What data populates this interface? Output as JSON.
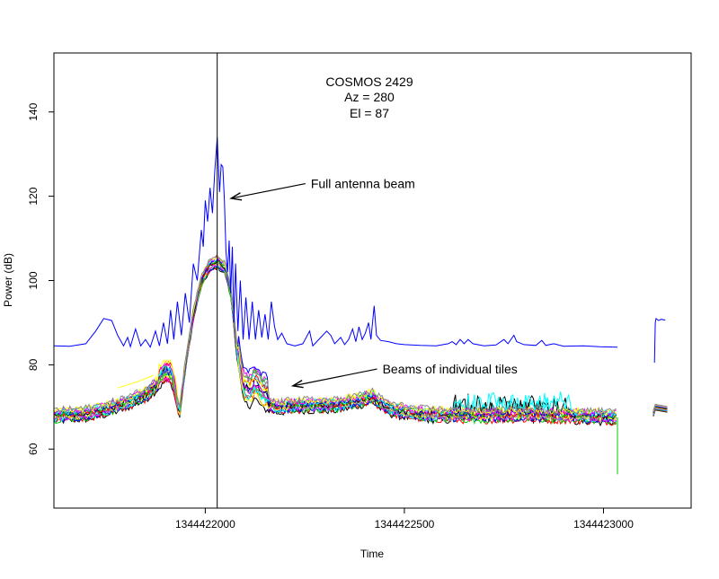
{
  "chart_data": {
    "type": "line",
    "title_lines": [
      "COSMOS 2429",
      "Az = 280",
      "El = 87"
    ],
    "xlabel": "Time",
    "ylabel": "Power (dB)",
    "xlim": [
      1344421620,
      1344423220
    ],
    "ylim": [
      46,
      154
    ],
    "x_ticks": [
      1344422000,
      1344422500,
      1344423000
    ],
    "x_tick_labels": [
      "1344422000",
      "1344422500",
      "1344423000"
    ],
    "y_ticks": [
      60,
      80,
      100,
      120,
      140
    ],
    "y_tick_labels": [
      "60",
      "80",
      "100",
      "120",
      "140"
    ],
    "vertical_marker_x": 1344422030,
    "annotations": [
      {
        "text": "Full antenna beam",
        "text_x": 1344422265,
        "text_y": 123,
        "arrow_to_x": 1344422065,
        "arrow_to_y": 119.5
      },
      {
        "text": "Beams of individual tiles",
        "text_x": 1344422445,
        "text_y": 79,
        "arrow_to_x": 1344422220,
        "arrow_to_y": 75
      }
    ],
    "full_beam": {
      "name": "Full antenna beam",
      "color": "#0000ff",
      "segments": [
        {
          "points": [
            [
              1344421620,
              84.5
            ],
            [
              1344421660,
              84.4
            ],
            [
              1344421700,
              85.0
            ],
            [
              1344421725,
              88.0
            ],
            [
              1344421745,
              91.0
            ],
            [
              1344421765,
              90.5
            ],
            [
              1344421780,
              87.0
            ],
            [
              1344421795,
              84.5
            ],
            [
              1344421805,
              86.5
            ],
            [
              1344421812,
              84.3
            ],
            [
              1344421825,
              88.5
            ],
            [
              1344421838,
              84.5
            ],
            [
              1344421850,
              86.0
            ],
            [
              1344421862,
              84.2
            ],
            [
              1344421875,
              88.0
            ],
            [
              1344421885,
              84.5
            ],
            [
              1344421895,
              90.0
            ],
            [
              1344421905,
              85.0
            ],
            [
              1344421913,
              93.0
            ],
            [
              1344421921,
              86.0
            ],
            [
              1344421930,
              95.0
            ],
            [
              1344421940,
              87.0
            ],
            [
              1344421950,
              97.0
            ],
            [
              1344421960,
              90.0
            ],
            [
              1344421970,
              104.0
            ],
            [
              1344421980,
              100.0
            ],
            [
              1344421990,
              112.0
            ],
            [
              1344421995,
              108.0
            ],
            [
              1344422000,
              119.0
            ],
            [
              1344422006,
              114.0
            ],
            [
              1344422012,
              122.0
            ],
            [
              1344422018,
              116.0
            ],
            [
              1344422024,
              126.0
            ],
            [
              1344422030,
              134.0
            ],
            [
              1344422036,
              121.0
            ],
            [
              1344422040,
              127.5
            ],
            [
              1344422044,
              127.0
            ],
            [
              1344422048,
              119.0
            ],
            [
              1344422052,
              107.0
            ],
            [
              1344422056,
              102.0
            ],
            [
              1344422060,
              109.5
            ],
            [
              1344422064,
              97.0
            ],
            [
              1344422068,
              108.0
            ],
            [
              1344422072,
              90.0
            ],
            [
              1344422076,
              104.0
            ],
            [
              1344422082,
              88.0
            ],
            [
              1344422088,
              100.0
            ],
            [
              1344422095,
              86.0
            ],
            [
              1344422102,
              96.0
            ],
            [
              1344422110,
              86.0
            ],
            [
              1344422118,
              95.0
            ],
            [
              1344422126,
              86.0
            ],
            [
              1344422134,
              93.0
            ],
            [
              1344422142,
              86.5
            ],
            [
              1344422150,
              92.0
            ],
            [
              1344422158,
              86.0
            ],
            [
              1344422166,
              95.0
            ],
            [
              1344422174,
              89.0
            ],
            [
              1344422182,
              86.0
            ],
            [
              1344422192,
              87.5
            ],
            [
              1344422205,
              85.0
            ],
            [
              1344422225,
              84.5
            ],
            [
              1344422245,
              85.0
            ],
            [
              1344422262,
              88.0
            ],
            [
              1344422270,
              84.5
            ],
            [
              1344422290,
              86.5
            ],
            [
              1344422305,
              88.0
            ],
            [
              1344422315,
              87.0
            ],
            [
              1344422325,
              85.0
            ],
            [
              1344422340,
              86.5
            ],
            [
              1344422350,
              84.8
            ],
            [
              1344422360,
              86.0
            ],
            [
              1344422370,
              88.5
            ],
            [
              1344422378,
              85.5
            ],
            [
              1344422386,
              89.0
            ],
            [
              1344422394,
              86.0
            ],
            [
              1344422402,
              87.5
            ],
            [
              1344422410,
              90.0
            ],
            [
              1344422416,
              86.0
            ],
            [
              1344422424,
              94.0
            ],
            [
              1344422430,
              87.0
            ],
            [
              1344422440,
              85.8
            ],
            [
              1344422460,
              85.5
            ],
            [
              1344422480,
              85.0
            ],
            [
              1344422500,
              84.8
            ],
            [
              1344422540,
              84.6
            ],
            [
              1344422580,
              84.5
            ],
            [
              1344422610,
              85.0
            ],
            [
              1344422620,
              85.5
            ],
            [
              1344422630,
              84.8
            ],
            [
              1344422640,
              86.0
            ],
            [
              1344422650,
              85.0
            ],
            [
              1344422660,
              86.0
            ],
            [
              1344422672,
              85.0
            ],
            [
              1344422700,
              84.5
            ],
            [
              1344422730,
              84.7
            ],
            [
              1344422750,
              86.0
            ],
            [
              1344422760,
              85.0
            ],
            [
              1344422775,
              87.0
            ],
            [
              1344422782,
              85.5
            ],
            [
              1344422800,
              84.8
            ],
            [
              1344422830,
              84.6
            ],
            [
              1344422845,
              85.8
            ],
            [
              1344422855,
              84.6
            ],
            [
              1344422875,
              85.0
            ],
            [
              1344422900,
              84.4
            ],
            [
              1344422950,
              84.5
            ],
            [
              1344422990,
              84.3
            ],
            [
              1344423035,
              84.2
            ]
          ]
        },
        {
          "points": [
            [
              1344423128,
              80.5
            ],
            [
              1344423130,
              90.0
            ],
            [
              1344423132,
              91.0
            ],
            [
              1344423138,
              90.5
            ],
            [
              1344423145,
              90.8
            ],
            [
              1344423155,
              90.6
            ]
          ]
        }
      ]
    },
    "tile_beams": {
      "name": "Beams of individual tiles",
      "count": 16,
      "colors": [
        "#000000",
        "#ff0000",
        "#00cd00",
        "#0000ff",
        "#00ffff",
        "#ff00ff",
        "#ffff00",
        "#888888",
        "#000000",
        "#ff0000",
        "#00cd00",
        "#0000ff",
        "#00ffff",
        "#ff00ff",
        "#ffff00",
        "#888888"
      ],
      "envelope": [
        [
          1344421620,
          68.0
        ],
        [
          1344421700,
          68.5
        ],
        [
          1344421750,
          69.5
        ],
        [
          1344421800,
          71.0
        ],
        [
          1344421850,
          73.0
        ],
        [
          1344421880,
          75.5
        ],
        [
          1344421900,
          77.5
        ],
        [
          1344421915,
          77.0
        ],
        [
          1344421925,
          73.0
        ],
        [
          1344421935,
          68.5
        ],
        [
          1344421950,
          80.0
        ],
        [
          1344421970,
          92.0
        ],
        [
          1344421990,
          100.0
        ],
        [
          1344422010,
          103.5
        ],
        [
          1344422030,
          104.5
        ],
        [
          1344422050,
          103.0
        ],
        [
          1344422065,
          97.0
        ],
        [
          1344422080,
          83.0
        ],
        [
          1344422095,
          73.0
        ],
        [
          1344422110,
          71.5
        ],
        [
          1344422125,
          73.5
        ],
        [
          1344422145,
          71.0
        ],
        [
          1344422180,
          70.0
        ],
        [
          1344422230,
          70.5
        ],
        [
          1344422290,
          70.5
        ],
        [
          1344422330,
          70.5
        ],
        [
          1344422380,
          71.5
        ],
        [
          1344422420,
          72.5
        ],
        [
          1344422440,
          71.0
        ],
        [
          1344422470,
          69.5
        ],
        [
          1344422530,
          68.5
        ],
        [
          1344422600,
          68.2
        ],
        [
          1344422680,
          68.0
        ],
        [
          1344422780,
          68.2
        ],
        [
          1344422900,
          68.0
        ],
        [
          1344423000,
          67.8
        ],
        [
          1344423035,
          67.6
        ]
      ],
      "tail_segment": [
        [
          1344423125,
          68.5
        ],
        [
          1344423130,
          70.0
        ],
        [
          1344423160,
          69.5
        ]
      ],
      "green_drop": {
        "x": 1344423035,
        "from": 67.5,
        "to": 54.0
      },
      "yellow_bump": [
        [
          1344421780,
          74.5
        ],
        [
          1344421830,
          76.0
        ],
        [
          1344421870,
          77.5
        ]
      ]
    }
  }
}
